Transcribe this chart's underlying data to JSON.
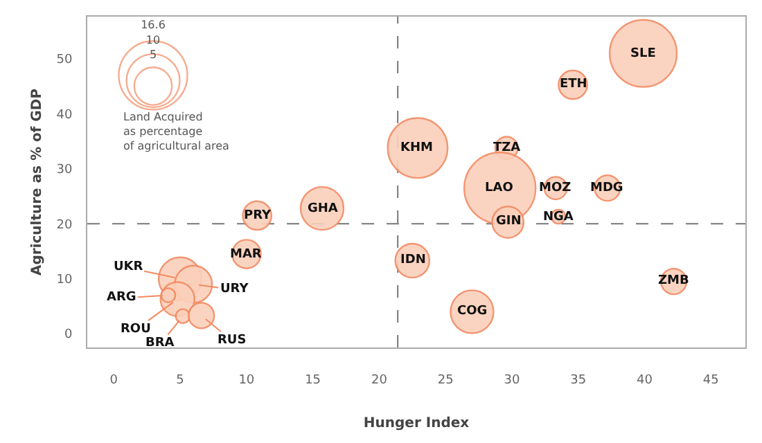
{
  "chart_data": {
    "type": "bubble",
    "xlabel": "Hunger Index",
    "ylabel": "Agriculture as % of GDP",
    "legend_title": "Land Acquired as percentage of agricultural area",
    "size_legend": [
      16.6,
      10,
      5
    ],
    "series": [
      {
        "color": "#fbd0bb",
        "x": [
          39.9,
          34.6,
          22.9,
          29.6,
          29.1,
          33.3,
          37.2,
          29.7,
          33.5,
          22.5,
          27.0,
          42.2,
          10.8,
          15.7,
          10.0,
          5.0,
          6.0,
          4.8,
          4.1,
          5.2,
          6.6
        ],
        "values": [
          51,
          45.3,
          33.8,
          33.8,
          26.5,
          26.5,
          26.5,
          20.3,
          21.3,
          13.3,
          4.0,
          9.5,
          21.5,
          22.8,
          14.5,
          10,
          9,
          6.3,
          7,
          3.2,
          3.3
        ],
        "sizes": [
          15.9,
          2.9,
          12.7,
          1.8,
          18.0,
          1.8,
          2.3,
          3.5,
          0.7,
          4.1,
          6.5,
          2.3,
          2.9,
          6.5,
          2.9,
          6.5,
          4.9,
          4.1,
          0.7,
          0.7,
          2.3
        ]
      }
    ],
    "annotations": [
      {
        "text": "SLE",
        "x": 39.9,
        "y": 51
      },
      {
        "text": "ETH",
        "x": 34.6,
        "y": 45.3
      },
      {
        "text": "KHM",
        "x": 22.9,
        "y": 33.8
      },
      {
        "text": "TZA",
        "x": 29.6,
        "y": 33.8
      },
      {
        "text": "LAO",
        "x": 29.1,
        "y": 26.5
      },
      {
        "text": "MOZ",
        "x": 33.3,
        "y": 26.5
      },
      {
        "text": "MDG",
        "x": 37.2,
        "y": 26.5
      },
      {
        "text": "GIN",
        "x": 29.7,
        "y": 20.3
      },
      {
        "text": "NGA",
        "x": 33.5,
        "y": 21.3
      },
      {
        "text": "IDN",
        "x": 22.5,
        "y": 13.3
      },
      {
        "text": "COG",
        "x": 27.0,
        "y": 4.0
      },
      {
        "text": "ZMB",
        "x": 42.2,
        "y": 9.5
      },
      {
        "text": "PRY",
        "x": 10.8,
        "y": 21.5
      },
      {
        "text": "GHA",
        "x": 15.7,
        "y": 22.8
      },
      {
        "text": "MAR",
        "x": 10.0,
        "y": 14.5
      },
      {
        "text": "UKR",
        "x": 5.0,
        "y": 10
      },
      {
        "text": "URY",
        "x": 6.0,
        "y": 9
      },
      {
        "text": "ROU",
        "x": 4.8,
        "y": 6.3
      },
      {
        "text": "ARG",
        "x": 4.1,
        "y": 7
      },
      {
        "text": "BRA",
        "x": 5.2,
        "y": 3.2
      },
      {
        "text": "RUS",
        "x": 6.6,
        "y": 3.3
      }
    ],
    "ref_lines": [
      {
        "axis": "x",
        "value": 21.4,
        "line_style": "dashed",
        "color": "#777777"
      },
      {
        "axis": "y",
        "value": 20,
        "line_style": "dashed",
        "color": "#777777"
      }
    ],
    "xlim": [
      -2,
      47.6
    ],
    "ylim": [
      -2.5,
      57.7
    ],
    "xticks": [
      0,
      5,
      10,
      15,
      20,
      25,
      30,
      35,
      40,
      45
    ],
    "yticks": [
      0,
      10,
      20,
      30,
      40,
      50
    ],
    "grid": false
  }
}
